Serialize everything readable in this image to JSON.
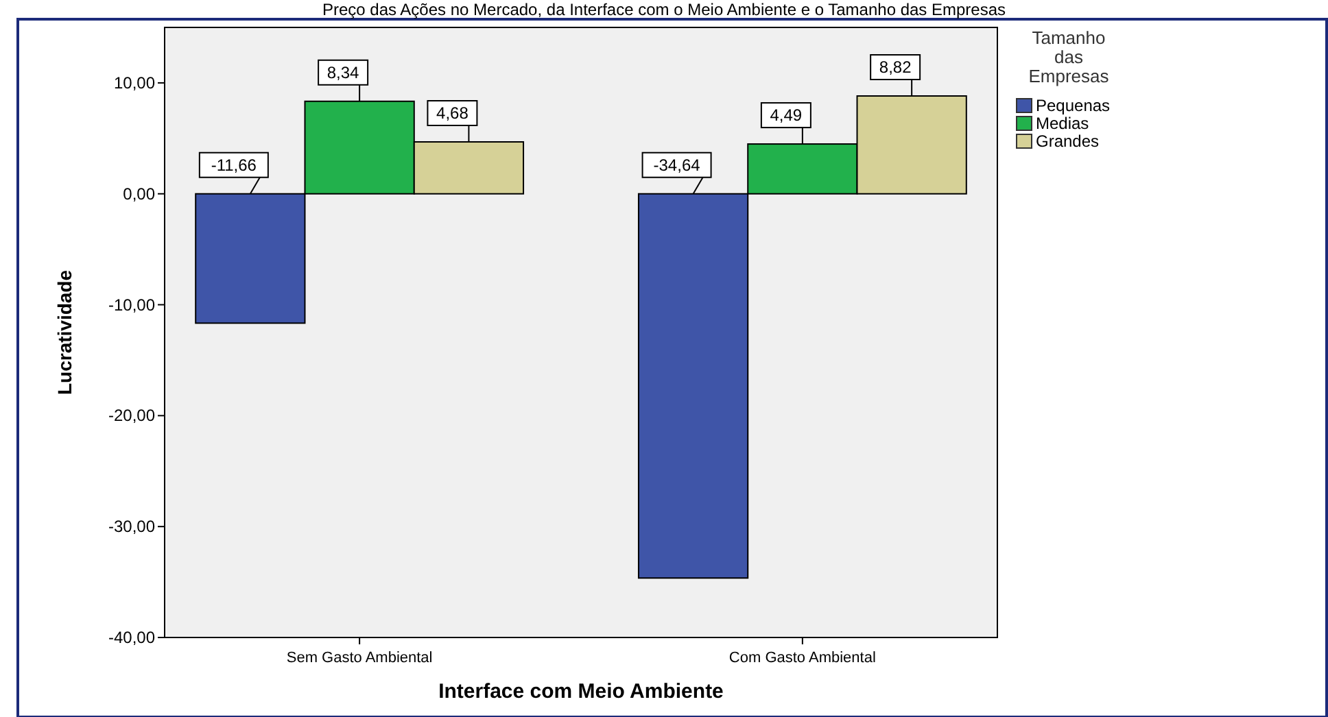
{
  "chart_data": {
    "type": "bar",
    "title": "Preço das Ações no Mercado, da Interface com o Meio Ambiente e o Tamanho das Empresas",
    "xlabel": "Interface com Meio Ambiente",
    "ylabel": "Lucratividade",
    "legend_title": "Tamanho das Empresas",
    "categories": [
      "Sem Gasto Ambiental",
      "Com Gasto Ambiental"
    ],
    "series": [
      {
        "name": "Pequenas",
        "color": "#3f55a8",
        "values": [
          -11.66,
          -34.64
        ],
        "value_labels": [
          "-11,66",
          "-34,64"
        ]
      },
      {
        "name": "Medias",
        "color": "#22b14c",
        "values": [
          8.34,
          4.49
        ],
        "value_labels": [
          "8,34",
          "4,49"
        ]
      },
      {
        "name": "Grandes",
        "color": "#d6d197",
        "values": [
          4.68,
          8.82
        ],
        "value_labels": [
          "4,68",
          "8,82"
        ]
      }
    ],
    "ylim": [
      -40,
      15
    ],
    "yticks": [
      {
        "value": 10,
        "label": "10,00"
      },
      {
        "value": 0,
        "label": "0,00"
      },
      {
        "value": -10,
        "label": "-10,00"
      },
      {
        "value": -20,
        "label": "-20,00"
      },
      {
        "value": -30,
        "label": "-30,00"
      },
      {
        "value": -40,
        "label": "-40,00"
      }
    ],
    "grid": false,
    "legend": "right"
  }
}
